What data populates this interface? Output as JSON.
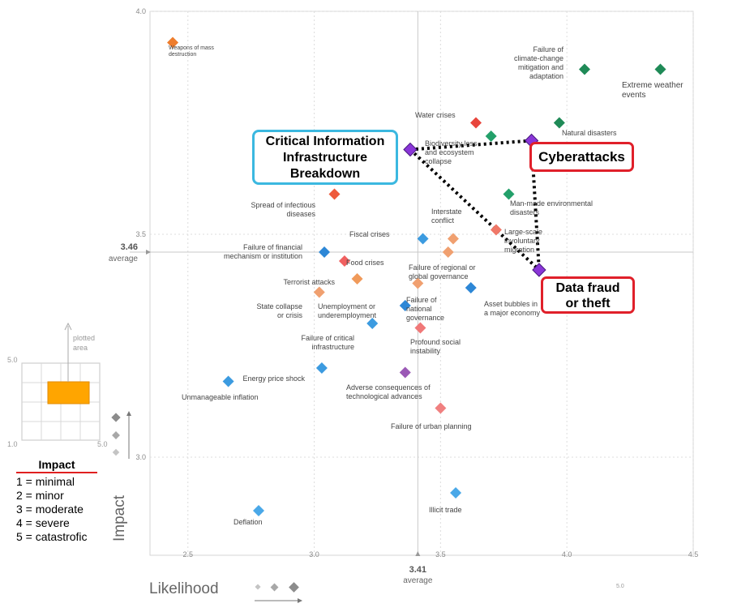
{
  "chart_data": {
    "type": "scatter",
    "xlabel": "Likelihood",
    "ylabel": "Impact",
    "xlim": [
      2.35,
      4.5
    ],
    "ylim": [
      2.78,
      4.0
    ],
    "x_ticks": [
      "2.5",
      "3.0",
      "3.5",
      "4.0",
      "4.5"
    ],
    "y_ticks": [
      "3.0",
      "3.5",
      "4.0"
    ],
    "grid": true,
    "x_average": {
      "value": 3.41,
      "value_label": "3.41",
      "label": "average"
    },
    "y_average": {
      "value": 3.46,
      "value_label": "3.46",
      "label": "average"
    },
    "points": [
      {
        "label": "Weapons of mass destruction",
        "x": 2.44,
        "y": 3.93,
        "color": "#ee7d2d"
      },
      {
        "label": "Failure of climate-change mitigation and adaptation",
        "x": 4.07,
        "y": 3.87,
        "color": "#1f8a57"
      },
      {
        "label": "Extreme weather events",
        "x": 4.37,
        "y": 3.87,
        "color": "#1f8a57"
      },
      {
        "label": "Water crises",
        "x": 3.64,
        "y": 3.75,
        "color": "#e8453c"
      },
      {
        "label": "Biodiversity loss and ecosystem collapse",
        "x": 3.7,
        "y": 3.72,
        "color": "#23a06a"
      },
      {
        "label": "Natural disasters",
        "x": 3.97,
        "y": 3.75,
        "color": "#1f8a57"
      },
      {
        "label": "Cyberattacks",
        "x": 3.86,
        "y": 3.71,
        "color": "#8a36d8"
      },
      {
        "label": "Critical Information Infrastructure Breakdown",
        "x": 3.38,
        "y": 3.69,
        "color": "#8a36d8"
      },
      {
        "label": "Man-made environmental disasters",
        "x": 3.77,
        "y": 3.59,
        "color": "#23a06a"
      },
      {
        "label": "Spread of infectious diseases",
        "x": 3.08,
        "y": 3.59,
        "color": "#ee5a3c"
      },
      {
        "label": "Interstate conflict",
        "x": 3.55,
        "y": 3.49,
        "color": "#f0a070"
      },
      {
        "label": "Fiscal crises",
        "x": 3.43,
        "y": 3.49,
        "color": "#3c9be0"
      },
      {
        "label": "Large-scale involuntary migration",
        "x": 3.72,
        "y": 3.51,
        "color": "#f07868"
      },
      {
        "label": "Failure of financial mechanism or institution",
        "x": 3.04,
        "y": 3.46,
        "color": "#2d87d6"
      },
      {
        "label": "Food crises",
        "x": 3.12,
        "y": 3.44,
        "color": "#f06060"
      },
      {
        "label": "Failure of regional or global governance",
        "x": 3.53,
        "y": 3.46,
        "color": "#f0a070"
      },
      {
        "label": "Data fraud or theft",
        "x": 3.89,
        "y": 3.42,
        "color": "#8a36d8"
      },
      {
        "label": "Terrorist attacks",
        "x": 3.17,
        "y": 3.4,
        "color": "#f09a5a"
      },
      {
        "label": "Failure of national governance",
        "x": 3.41,
        "y": 3.39,
        "color": "#f0a070"
      },
      {
        "label": "Asset bubbles in a major economy",
        "x": 3.62,
        "y": 3.38,
        "color": "#2d87d6"
      },
      {
        "label": "State collapse or crisis",
        "x": 3.02,
        "y": 3.37,
        "color": "#f0a070"
      },
      {
        "label": "Unemployment or underemployment",
        "x": 3.36,
        "y": 3.34,
        "color": "#2d87d6"
      },
      {
        "label": "Failure of critical infrastructure",
        "x": 3.23,
        "y": 3.3,
        "color": "#3c9be0"
      },
      {
        "label": "Profound social instability",
        "x": 3.42,
        "y": 3.29,
        "color": "#f07878"
      },
      {
        "label": "Energy price shock",
        "x": 3.03,
        "y": 3.2,
        "color": "#3c9be0"
      },
      {
        "label": "Adverse consequences of technological advances",
        "x": 3.36,
        "y": 3.19,
        "color": "#9b59b6"
      },
      {
        "label": "Unmanageable inflation",
        "x": 2.66,
        "y": 3.17,
        "color": "#3c9be0"
      },
      {
        "label": "Failure of urban planning",
        "x": 3.5,
        "y": 3.11,
        "color": "#f08080"
      },
      {
        "label": "Illicit trade",
        "x": 3.56,
        "y": 2.92,
        "color": "#4aa8e8"
      },
      {
        "label": "Deflation",
        "x": 2.78,
        "y": 2.88,
        "color": "#4aa8e8"
      }
    ],
    "highlight_links": [
      [
        "Critical Information Infrastructure Breakdown",
        "Cyberattacks"
      ],
      [
        "Critical Information Infrastructure Breakdown",
        "Data fraud or theft"
      ],
      [
        "Cyberattacks",
        "Data fraud or theft"
      ]
    ],
    "point_labels": [
      {
        "lines": [
          "Weapons of mass",
          "destruction"
        ]
      },
      {
        "lines": [
          "Failure of",
          "climate-change",
          "mitigation and",
          "adaptation"
        ]
      },
      {
        "lines": [
          "Extreme weather",
          "events"
        ]
      },
      {
        "lines": [
          "Water crises"
        ]
      },
      {
        "lines": [
          "Biodiversity loss",
          "and ecosystem",
          "collapse"
        ]
      },
      {
        "lines": [
          "Natural disasters"
        ]
      },
      {
        "lines": [
          "Man-made environmental",
          "disasters"
        ]
      },
      {
        "lines": [
          "Spread of infectious",
          "diseases"
        ]
      },
      {
        "lines": [
          "Interstate",
          "conflict"
        ]
      },
      {
        "lines": [
          "Fiscal crises"
        ]
      },
      {
        "lines": [
          "Large-scale",
          "involuntary",
          "migration"
        ]
      },
      {
        "lines": [
          "Failure of financial",
          "mechanism or institution"
        ]
      },
      {
        "lines": [
          "Food crises"
        ]
      },
      {
        "lines": [
          "Failure of regional or",
          "global governance"
        ]
      },
      {
        "lines": [
          "Terrorist attacks"
        ]
      },
      {
        "lines": [
          "Failure of",
          "national",
          "governance"
        ]
      },
      {
        "lines": [
          "Asset bubbles in",
          "a major economy"
        ]
      },
      {
        "lines": [
          "State collapse",
          "or crisis"
        ]
      },
      {
        "lines": [
          "Unemployment or",
          "underemployment"
        ]
      },
      {
        "lines": [
          "Failure of critical",
          "infrastructure"
        ]
      },
      {
        "lines": [
          "Profound social",
          "instability"
        ]
      },
      {
        "lines": [
          "Energy price shock"
        ]
      },
      {
        "lines": [
          "Adverse consequences of",
          "technological advances"
        ]
      },
      {
        "lines": [
          "Unmanageable inflation"
        ]
      },
      {
        "lines": [
          "Failure of urban planning"
        ]
      },
      {
        "lines": [
          "Illicit trade"
        ]
      },
      {
        "lines": [
          "Deflation"
        ]
      }
    ]
  },
  "callouts": {
    "critical_info": [
      "Critical Information",
      "Infrastructure",
      "Breakdown"
    ],
    "cyberattacks": "Cyberattacks",
    "data_fraud": [
      "Data fraud",
      "or theft"
    ]
  },
  "inset": {
    "plotted_area_label": [
      "plotted",
      "area"
    ],
    "corner_max": "5.0",
    "corner_min": "1.0",
    "corner_right": "5.0",
    "likelihood_scale_max": "5.0"
  },
  "legend": {
    "title": "Impact",
    "items": [
      "1 = minimal",
      "2 = minor",
      "3 = moderate",
      "4 = severe",
      "5 = catastrofic"
    ]
  },
  "colors": {
    "highlight": "#8a36d8",
    "callout_blue": "#3bb8e0",
    "callout_red": "#e0202a",
    "inset_fill": "#ffa500"
  }
}
